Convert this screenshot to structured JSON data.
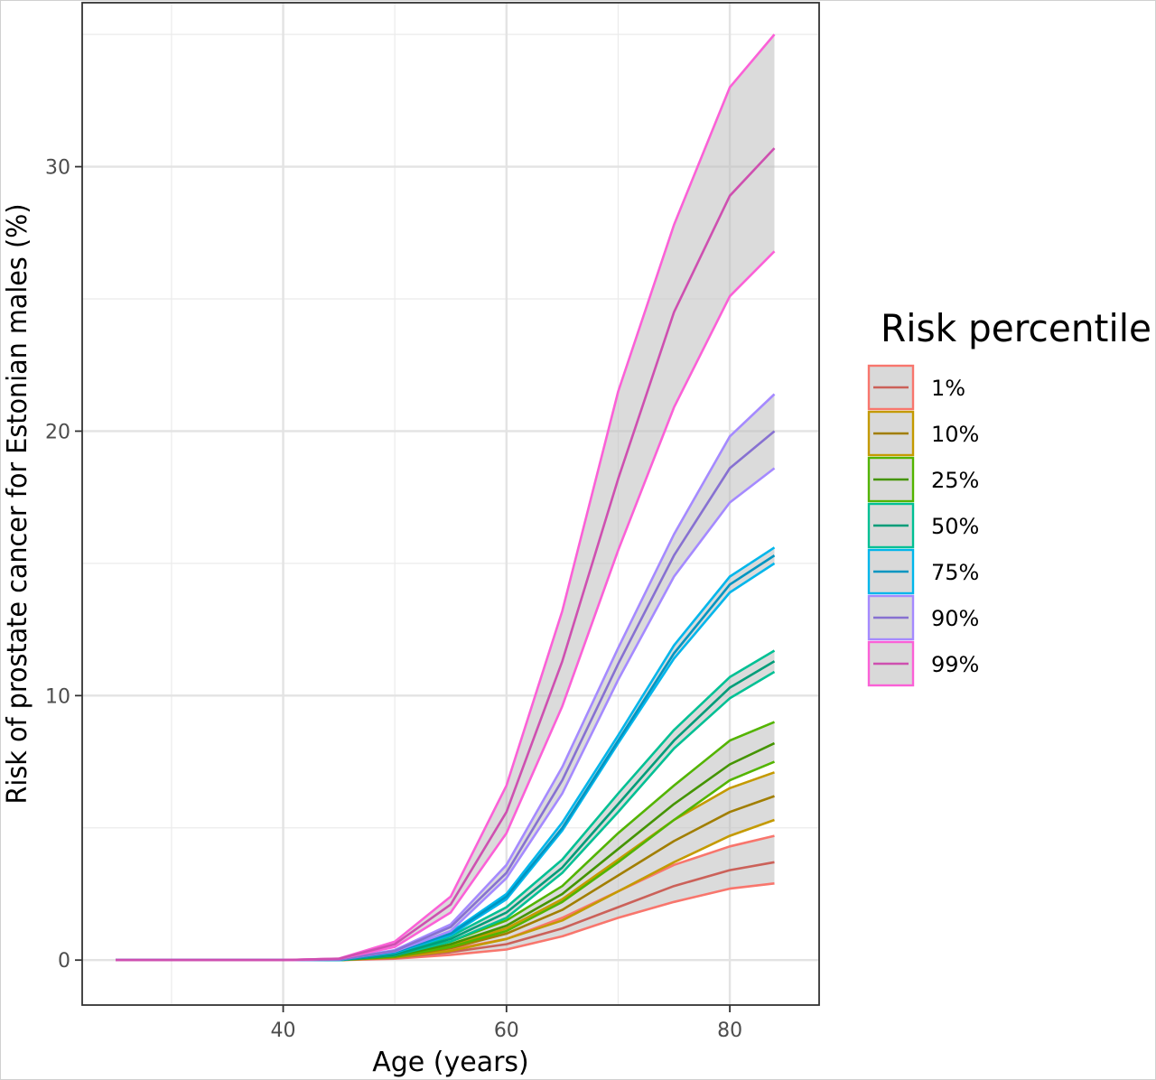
{
  "chart_data": {
    "type": "line",
    "xlabel": "Age (years)",
    "ylabel": "Risk of prostate cancer for Estonian males (%)",
    "xlim": [
      22,
      88
    ],
    "ylim": [
      -1.7,
      36.2
    ],
    "x_ticks": [
      40,
      60,
      80
    ],
    "x_tick_labels": [
      "40",
      "60",
      "80"
    ],
    "y_ticks": [
      0,
      10,
      20,
      30
    ],
    "y_tick_labels": [
      "0",
      "10",
      "20",
      "30"
    ],
    "grid": true,
    "bands": true,
    "legend": {
      "title": "Risk percentile",
      "position": "right"
    },
    "x": [
      25,
      30,
      35,
      40,
      45,
      50,
      55,
      60,
      65,
      70,
      75,
      80,
      84
    ],
    "series": [
      {
        "name": "1%",
        "color": "#F8766D",
        "mid": [
          0,
          0,
          0,
          0,
          0,
          0.08,
          0.3,
          0.6,
          1.2,
          2.0,
          2.8,
          3.4,
          3.7
        ],
        "lower": [
          0,
          0,
          0,
          0,
          0,
          0.05,
          0.2,
          0.4,
          0.9,
          1.6,
          2.2,
          2.7,
          2.9
        ],
        "upper": [
          0,
          0,
          0,
          0,
          0,
          0.1,
          0.4,
          0.8,
          1.6,
          2.6,
          3.6,
          4.3,
          4.7
        ]
      },
      {
        "name": "10%",
        "color": "#C49A00",
        "mid": [
          0,
          0,
          0,
          0,
          0,
          0.12,
          0.45,
          1.0,
          1.9,
          3.2,
          4.5,
          5.6,
          6.2
        ],
        "lower": [
          0,
          0,
          0,
          0,
          0,
          0.1,
          0.35,
          0.8,
          1.5,
          2.6,
          3.7,
          4.7,
          5.3
        ],
        "upper": [
          0,
          0,
          0,
          0,
          0,
          0.15,
          0.55,
          1.2,
          2.3,
          3.8,
          5.3,
          6.5,
          7.1
        ]
      },
      {
        "name": "25%",
        "color": "#53B400",
        "mid": [
          0,
          0,
          0,
          0,
          0,
          0.16,
          0.6,
          1.3,
          2.5,
          4.2,
          5.9,
          7.4,
          8.2
        ],
        "lower": [
          0,
          0,
          0,
          0,
          0,
          0.13,
          0.5,
          1.1,
          2.2,
          3.7,
          5.3,
          6.8,
          7.5
        ],
        "upper": [
          0,
          0,
          0,
          0,
          0,
          0.19,
          0.7,
          1.5,
          2.8,
          4.8,
          6.6,
          8.3,
          9.0
        ]
      },
      {
        "name": "50%",
        "color": "#00C094",
        "mid": [
          0,
          0,
          0,
          0,
          0,
          0.2,
          0.8,
          1.8,
          3.5,
          5.9,
          8.3,
          10.3,
          11.3
        ],
        "lower": [
          0,
          0,
          0,
          0,
          0,
          0.18,
          0.7,
          1.6,
          3.3,
          5.6,
          8.0,
          9.9,
          10.9
        ],
        "upper": [
          0,
          0,
          0,
          0,
          0,
          0.22,
          0.9,
          2.0,
          3.8,
          6.3,
          8.7,
          10.7,
          11.7
        ]
      },
      {
        "name": "75%",
        "color": "#00B6EB",
        "mid": [
          0,
          0,
          0,
          0,
          0,
          0.3,
          1.0,
          2.4,
          5.0,
          8.3,
          11.6,
          14.2,
          15.3
        ],
        "lower": [
          0,
          0,
          0,
          0,
          0,
          0.28,
          0.95,
          2.3,
          4.9,
          8.2,
          11.4,
          13.9,
          15.0
        ],
        "upper": [
          0,
          0,
          0,
          0,
          0,
          0.32,
          1.05,
          2.5,
          5.2,
          8.5,
          11.9,
          14.5,
          15.6
        ]
      },
      {
        "name": "90%",
        "color": "#A58AFF",
        "mid": [
          0,
          0,
          0,
          0,
          0.02,
          0.35,
          1.25,
          3.3,
          6.8,
          11.2,
          15.3,
          18.6,
          20.0
        ],
        "lower": [
          0,
          0,
          0,
          0,
          0.02,
          0.33,
          1.1,
          3.1,
          6.3,
          10.6,
          14.5,
          17.3,
          18.6
        ],
        "upper": [
          0,
          0,
          0,
          0,
          0.03,
          0.38,
          1.35,
          3.6,
          7.3,
          11.8,
          16.1,
          19.8,
          21.4
        ]
      },
      {
        "name": "99%",
        "color": "#FB61D7",
        "mid": [
          0,
          0,
          0,
          0,
          0.05,
          0.6,
          2.1,
          5.6,
          11.3,
          18.2,
          24.5,
          28.9,
          30.7
        ],
        "lower": [
          0,
          0,
          0,
          0,
          0.05,
          0.5,
          1.8,
          4.8,
          9.6,
          15.5,
          20.9,
          25.1,
          26.8
        ],
        "upper": [
          0,
          0,
          0,
          0,
          0.06,
          0.7,
          2.4,
          6.6,
          13.2,
          21.5,
          27.8,
          33.0,
          35.0
        ]
      }
    ]
  }
}
